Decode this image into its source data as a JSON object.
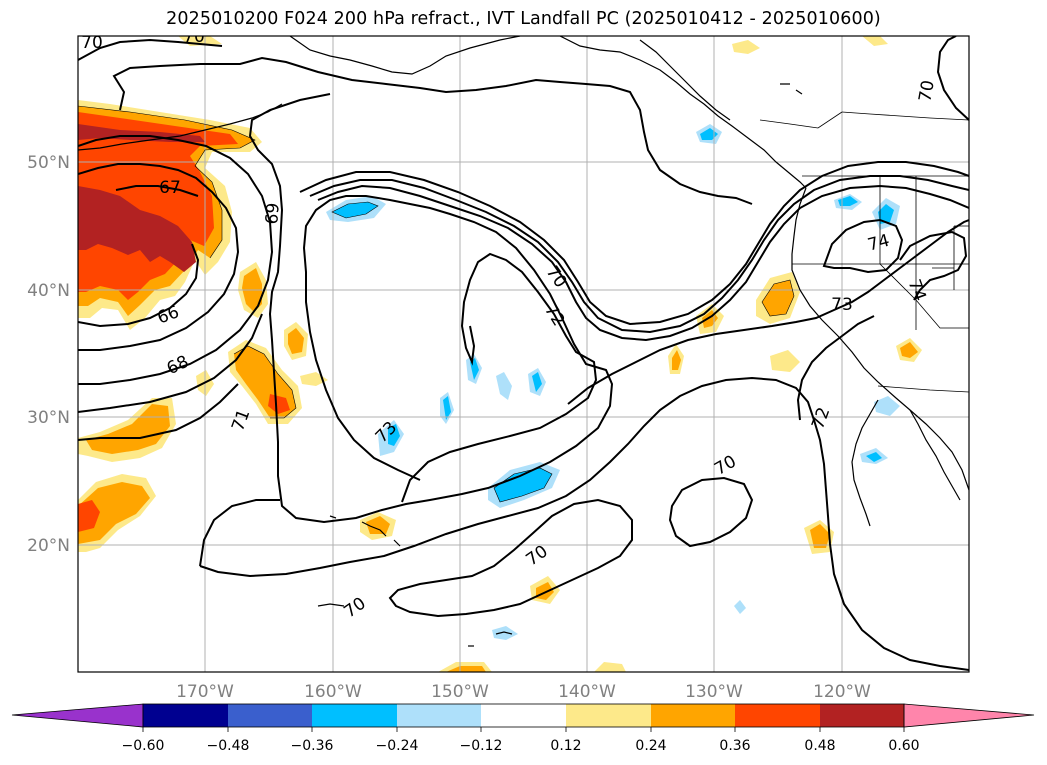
{
  "title": "2025010200 F024 200 hPa refract., IVT Landfall PC (2025010412 - 2025010600)",
  "colors": {
    "pos_012": "#fde98a",
    "pos_024": "#ffa500",
    "pos_036": "#ff4500",
    "pos_048": "#b22222",
    "pos_over": "#ff85ab",
    "neg_012": "#aee0fa",
    "neg_024": "#00bfff",
    "neg_036": "#3a5fcd",
    "neg_048": "#000090",
    "neg_over": "#9932cc",
    "coast": "#000000",
    "grid": "#b0b0b0"
  },
  "map": {
    "lat_labels": [
      "50°N",
      "40°N",
      "30°N",
      "20°N"
    ],
    "lon_labels": [
      "170°W",
      "160°W",
      "150°W",
      "140°W",
      "130°W",
      "120°W"
    ],
    "contour_labels": [
      "70",
      "70",
      "67",
      "69",
      "66",
      "68",
      "71",
      "73",
      "70",
      "72",
      "74",
      "73",
      "74",
      "72",
      "70",
      "70",
      "70",
      "70"
    ]
  },
  "colorbar": {
    "ticks": [
      "−0.60",
      "−0.48",
      "−0.36",
      "−0.24",
      "−0.12",
      "0.12",
      "0.24",
      "0.36",
      "0.48",
      "0.60"
    ],
    "boundaries": [
      -0.6,
      -0.48,
      -0.36,
      -0.24,
      -0.12,
      0.12,
      0.24,
      0.36,
      0.48,
      0.6
    ],
    "segment_colors": [
      "#9932cc",
      "#000090",
      "#3a5fcd",
      "#00bfff",
      "#aee0fa",
      "#ffffff",
      "#fde98a",
      "#ffa500",
      "#ff4500",
      "#b22222",
      "#ff85ab"
    ]
  }
}
